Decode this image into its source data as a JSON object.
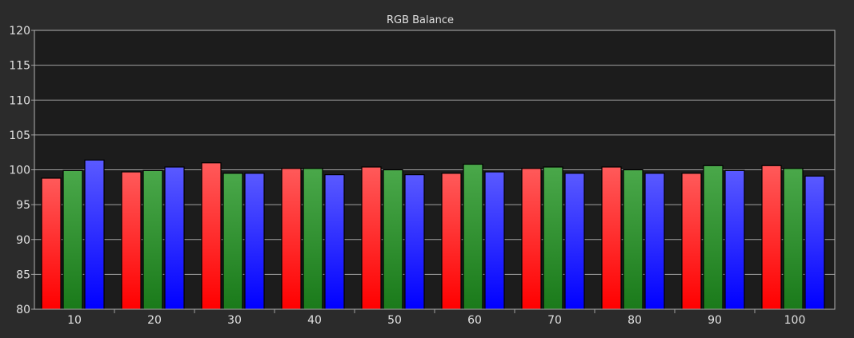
{
  "chart_data": {
    "type": "bar",
    "title": "RGB Balance",
    "xlabel": "",
    "ylabel": "",
    "categories": [
      "10",
      "20",
      "30",
      "40",
      "50",
      "60",
      "70",
      "80",
      "90",
      "100"
    ],
    "ylim": [
      80,
      120
    ],
    "yticks": [
      80,
      85,
      90,
      95,
      100,
      105,
      110,
      115,
      120
    ],
    "grid": true,
    "series": [
      {
        "color": "#ff1a1a",
        "values": [
          98.8,
          99.7,
          101.0,
          100.2,
          100.4,
          99.5,
          100.2,
          100.4,
          99.5,
          100.6
        ]
      },
      {
        "color": "#2a8f2a",
        "values": [
          99.9,
          99.9,
          99.5,
          100.2,
          100.0,
          100.8,
          100.4,
          100.0,
          100.6,
          100.2
        ]
      },
      {
        "color": "#1a1aff",
        "values": [
          101.4,
          100.4,
          99.5,
          99.3,
          99.3,
          99.7,
          99.5,
          99.5,
          99.9,
          99.1
        ]
      }
    ],
    "colors": {
      "background": "#2b2b2b",
      "plot_background": "#1c1c1c",
      "grid": "#a0a0a0",
      "text": "#e0e0e0"
    }
  }
}
